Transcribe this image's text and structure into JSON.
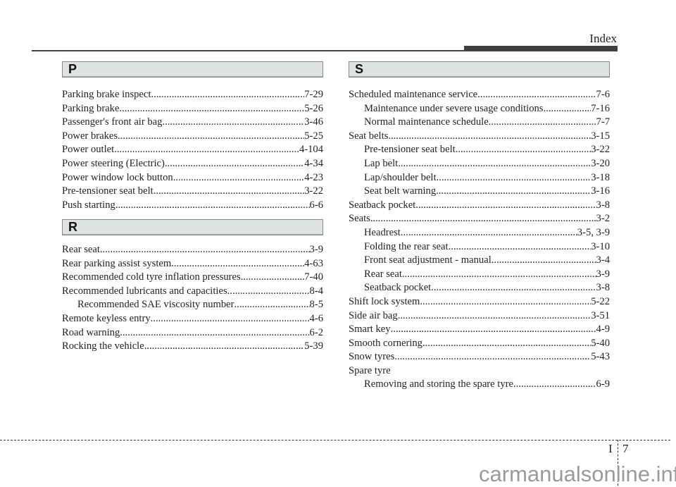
{
  "header": {
    "title": "Index"
  },
  "sections": {
    "p": {
      "letter": "P",
      "entries": [
        {
          "label": "Parking brake inspect",
          "page": "7-29"
        },
        {
          "label": "Parking brake",
          "page": "5-26"
        },
        {
          "label": "Passenger's front air bag ",
          "page": "3-46"
        },
        {
          "label": "Power brakes ",
          "page": "5-25"
        },
        {
          "label": "Power outlet",
          "page": "4-104"
        },
        {
          "label": "Power steering (Electric) ",
          "page": "4-34"
        },
        {
          "label": "Power window lock button ",
          "page": "4-23"
        },
        {
          "label": "Pre-tensioner seat belt ",
          "page": "3-22"
        },
        {
          "label": "Push starting",
          "page": "6-6"
        }
      ]
    },
    "r": {
      "letter": "R",
      "entries": [
        {
          "label": "Rear seat",
          "page": "3-9"
        },
        {
          "label": "Rear parking assist system",
          "page": "4-63"
        },
        {
          "label": "Recommended cold tyre inflation pressures ",
          "page": "7-40"
        },
        {
          "label": "Recommended lubricants and capacities ",
          "page": "8-4"
        },
        {
          "label": "Recommended SAE viscosity number",
          "page": "8-5",
          "sub": true
        },
        {
          "label": "Remote keyless entry ",
          "page": "4-6"
        },
        {
          "label": "Road warning ",
          "page": "6-2"
        },
        {
          "label": "Rocking the vehicle ",
          "page": "5-39"
        }
      ]
    },
    "s": {
      "letter": "S",
      "entries": [
        {
          "label": "Scheduled maintenance service ",
          "page": "7-6"
        },
        {
          "label": "Maintenance under severe usage conditions ",
          "page": "7-16",
          "sub": true
        },
        {
          "label": "Normal maintenance schedule ",
          "page": "7-7",
          "sub": true
        },
        {
          "label": "Seat belts ",
          "page": "3-15"
        },
        {
          "label": "Pre-tensioner seat belt ",
          "page": "3-22",
          "sub": true
        },
        {
          "label": "Lap belt",
          "page": "3-20",
          "sub": true
        },
        {
          "label": "Lap/shoulder belt ",
          "page": "3-18",
          "sub": true
        },
        {
          "label": "Seat belt warning ",
          "page": "3-16",
          "sub": true
        },
        {
          "label": "Seatback pocket ",
          "page": "3-8"
        },
        {
          "label": "Seats ",
          "page": "3-2"
        },
        {
          "label": "Headrest ",
          "page": "3-5, 3-9",
          "sub": true
        },
        {
          "label": "Folding the rear seat ",
          "page": "3-10",
          "sub": true
        },
        {
          "label": "Front seat adjustment - manual ",
          "page": "3-4",
          "sub": true
        },
        {
          "label": "Rear seat ",
          "page": "3-9",
          "sub": true
        },
        {
          "label": "Seatback pocket ",
          "page": "3-8",
          "sub": true
        },
        {
          "label": "Shift lock system ",
          "page": "5-22"
        },
        {
          "label": "Side air bag ",
          "page": "3-51"
        },
        {
          "label": "Smart key ",
          "page": "4-9"
        },
        {
          "label": "Smooth cornering",
          "page": "5-40"
        },
        {
          "label": "Snow tyres ",
          "page": "5-43"
        },
        {
          "label": "Spare tyre",
          "page": ""
        },
        {
          "label": "Removing and storing the spare tyre ",
          "page": "6-9",
          "sub": true
        }
      ]
    }
  },
  "footer": {
    "chapter": "I",
    "page": "7"
  },
  "watermark": "carmanualsonline.info"
}
